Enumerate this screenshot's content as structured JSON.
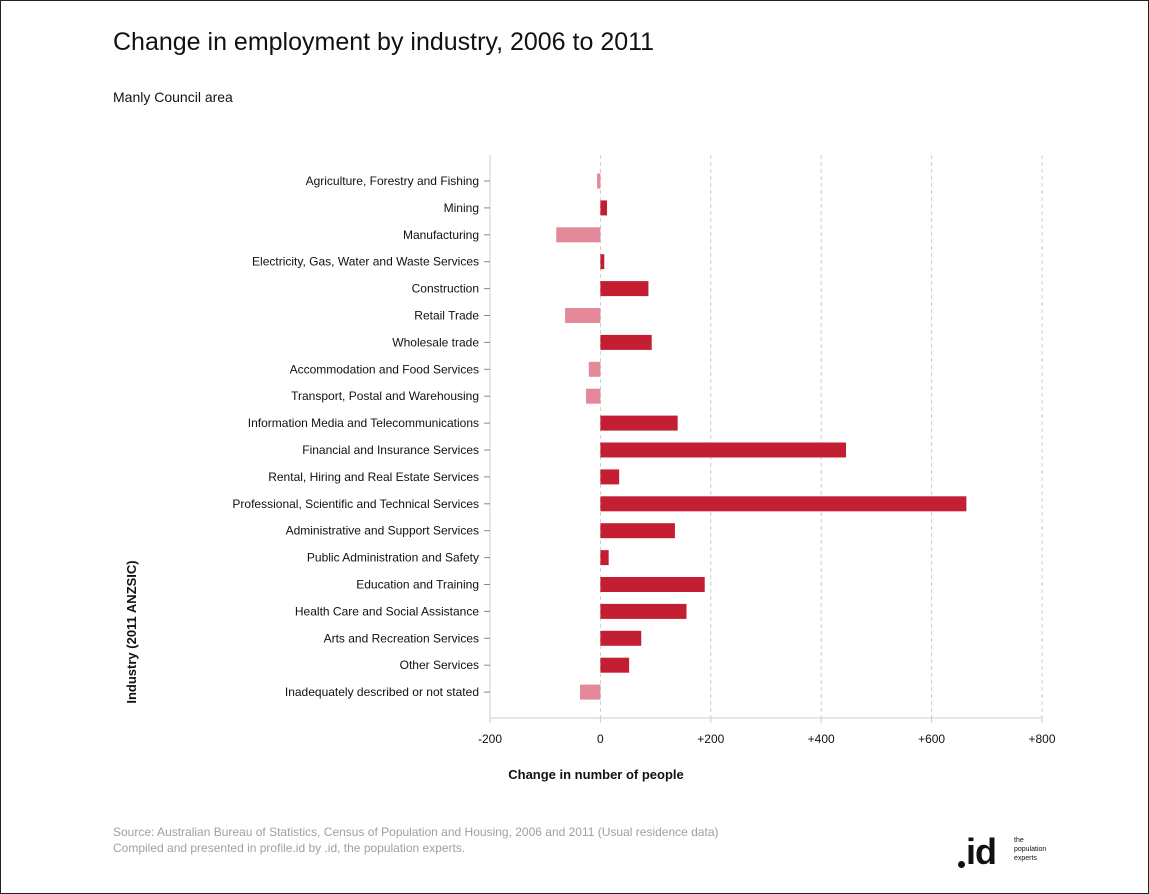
{
  "header": {
    "title": "Change in employment by industry, 2006 to 2011",
    "subtitle": "Manly Council area"
  },
  "footer": {
    "source_line1": "Source: Australian Bureau of Statistics, Census of Population and Housing, 2006 and 2011 (Usual residence data)",
    "source_line2": "Compiled and presented  in profile.id by .id, the population experts.",
    "logo_mark": ".id",
    "logo_tag": [
      "the",
      "population",
      "experts"
    ]
  },
  "colors": {
    "positive": "#c41e32",
    "negative": "#e3899a",
    "grid": "#cccccc",
    "axis": "#cccccc",
    "text": "#111111"
  },
  "chart_data": {
    "type": "bar",
    "orientation": "horizontal",
    "title": "Change in employment by industry, 2006 to 2011",
    "subtitle": "Manly Council area",
    "xlabel": "Change in number of people",
    "ylabel": "Industry (2011 ANZSIC)",
    "xlim": [
      -200,
      800
    ],
    "xticks": [
      -200,
      0,
      200,
      400,
      600,
      800
    ],
    "xtick_labels": [
      "-200",
      "0",
      "+200",
      "+400",
      "+600",
      "+800"
    ],
    "grid": "vertical dashed",
    "categories": [
      "Agriculture, Forestry and Fishing",
      "Mining",
      "Manufacturing",
      "Electricity, Gas, Water and Waste Services",
      "Construction",
      "Retail Trade",
      "Wholesale trade",
      "Accommodation and Food Services",
      "Transport, Postal and Warehousing",
      "Information Media and Telecommunications",
      "Financial and Insurance Services",
      "Rental, Hiring and Real Estate Services",
      "Professional, Scientific and Technical Services",
      "Administrative and Support Services",
      "Public Administration and Safety",
      "Education and Training",
      "Health Care and Social Assistance",
      "Arts and Recreation Services",
      "Other Services",
      "Inadequately described or not stated"
    ],
    "values": [
      -6,
      12,
      -80,
      7,
      87,
      -64,
      93,
      -21,
      -26,
      140,
      445,
      34,
      663,
      135,
      15,
      189,
      156,
      74,
      52,
      -37
    ]
  }
}
